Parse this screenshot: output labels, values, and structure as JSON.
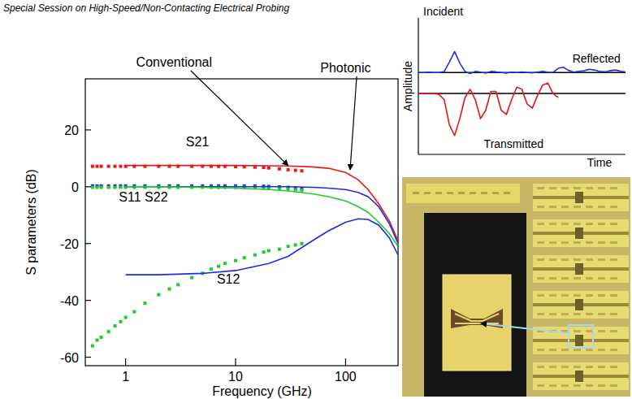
{
  "header": {
    "text": "Special Session on High-Speed/Non-Contacting Electrical Probing"
  },
  "chart_data": [
    {
      "type": "line",
      "xlabel": "Frequency (GHz)",
      "ylabel": "S parameters (dB)",
      "log": "x",
      "xlim": [
        0.43,
        300
      ],
      "xticks": [
        1,
        10,
        100
      ],
      "ylim": [
        -63,
        38
      ],
      "yticks": [
        -60,
        -40,
        -20,
        0,
        20
      ],
      "grid": false,
      "annotations": [
        {
          "text": "S21",
          "x": 4.5,
          "y": 16
        },
        {
          "text": "S11 S22",
          "x": 1.45,
          "y": -3.6
        },
        {
          "text": "S12",
          "x": 8.6,
          "y": -32.5
        },
        {
          "text": "Conventional",
          "x": 2.76,
          "y": 44,
          "arrow": {
            "x": 30,
            "y": 7.5
          }
        },
        {
          "text": "Photonic",
          "x": 100,
          "y": 42,
          "arrow": {
            "x": 110,
            "y": 6
          }
        }
      ],
      "series": [
        {
          "type": "scatter",
          "marker": "square",
          "color": "#e81818",
          "x": [
            0.5,
            0.55,
            0.6,
            0.7,
            0.8,
            0.9,
            1,
            1.2,
            1.5,
            2,
            2.5,
            3,
            4,
            5,
            6,
            7,
            8,
            10,
            12,
            15,
            18,
            20,
            25,
            30,
            35,
            40
          ],
          "values": [
            7.2,
            7.2,
            7.2,
            7.2,
            7.2,
            7.2,
            7.2,
            7.2,
            7.2,
            7.2,
            7.2,
            7.2,
            7.2,
            7.2,
            7.2,
            7.2,
            7.2,
            7.1,
            7.0,
            6.9,
            6.8,
            6.6,
            6.3,
            6.0,
            5.8,
            5.6
          ]
        },
        {
          "type": "line",
          "line_style": "solid",
          "color": "#e81818",
          "x": [
            1,
            2,
            5,
            10,
            20,
            30,
            50,
            70,
            100,
            130,
            160,
            200,
            250,
            300
          ],
          "values": [
            7.5,
            7.5,
            7.5,
            7.5,
            7.4,
            7.3,
            7.0,
            6.5,
            5.0,
            2.5,
            -1,
            -6,
            -12,
            -19
          ]
        },
        {
          "type": "scatter",
          "marker": "square",
          "color": "#1c2ce0",
          "x": [
            0.5,
            0.55,
            0.6,
            0.7,
            0.8,
            0.9,
            1,
            1.2,
            1.5,
            2,
            2.5,
            3,
            4,
            5,
            6,
            7,
            8,
            10,
            12,
            15,
            18,
            20,
            25,
            30,
            35,
            40
          ],
          "values": [
            0.3,
            0.3,
            0.3,
            0.3,
            0.3,
            0.3,
            0.3,
            0.3,
            0.3,
            0.3,
            0.3,
            0.3,
            0.3,
            0.3,
            0.3,
            0.3,
            0.3,
            0.3,
            0.3,
            0.3,
            0.2,
            0.1,
            0,
            -0.2,
            -0.4,
            -0.6
          ]
        },
        {
          "type": "scatter",
          "marker": "square",
          "color": "#1fcc2a",
          "x": [
            0.5,
            0.55,
            0.6,
            0.7,
            0.8,
            0.9,
            1,
            1.2,
            1.5,
            2,
            2.5,
            3,
            4,
            5,
            6,
            7,
            8,
            10,
            12,
            15,
            18,
            20,
            25,
            30,
            35,
            40
          ],
          "values": [
            -0.2,
            -0.2,
            -0.2,
            -0.2,
            -0.2,
            -0.2,
            -0.2,
            -0.2,
            -0.2,
            -0.2,
            -0.2,
            -0.2,
            -0.2,
            -0.2,
            -0.2,
            -0.2,
            -0.2,
            -0.2,
            -0.2,
            -0.2,
            -0.3,
            -0.4,
            -0.6,
            -0.8,
            -1.0,
            -1.2
          ]
        },
        {
          "type": "line",
          "line_style": "solid",
          "color": "#1c2ce0",
          "x": [
            1,
            2,
            5,
            10,
            20,
            30,
            50,
            70,
            100,
            130,
            160,
            200,
            250,
            300
          ],
          "values": [
            0,
            0,
            0,
            0,
            0,
            0,
            -0.2,
            -0.5,
            -1,
            -2,
            -3.5,
            -7,
            -13,
            -20
          ]
        },
        {
          "type": "line",
          "line_style": "solid",
          "color": "#1fcc2a",
          "x": [
            1,
            2,
            5,
            10,
            20,
            30,
            50,
            70,
            100,
            130,
            160,
            200,
            250,
            300
          ],
          "values": [
            0,
            0,
            -0.2,
            -0.5,
            -1,
            -1.5,
            -2.5,
            -3.5,
            -5,
            -7,
            -9,
            -12.5,
            -16.5,
            -21
          ]
        },
        {
          "type": "scatter",
          "marker": "square",
          "color": "#1fcc2a",
          "x": [
            0.5,
            0.55,
            0.6,
            0.7,
            0.8,
            0.9,
            1,
            1.2,
            1.5,
            2,
            2.5,
            3,
            4,
            5,
            6,
            7,
            8,
            10,
            12,
            15,
            18,
            20,
            25,
            30,
            35,
            40
          ],
          "values": [
            -56,
            -54,
            -53,
            -51,
            -49,
            -47.5,
            -46,
            -44,
            -41,
            -38,
            -36,
            -34.5,
            -32,
            -30.5,
            -29,
            -28,
            -27,
            -26,
            -25,
            -24,
            -23,
            -22.5,
            -22,
            -21,
            -20.5,
            -20
          ]
        },
        {
          "type": "line",
          "line_style": "solid",
          "color": "#1c2ce0",
          "x": [
            1,
            2,
            5,
            10,
            20,
            30,
            50,
            70,
            100,
            130,
            160,
            200,
            250,
            300
          ],
          "values": [
            -31,
            -31,
            -30.5,
            -29.5,
            -27,
            -24.5,
            -19,
            -15.5,
            -12.5,
            -11.3,
            -11.5,
            -13.5,
            -18,
            -24
          ]
        }
      ]
    },
    {
      "type": "line",
      "xlabel": "Time",
      "ylabel": "Amplitude",
      "tick_labels": false,
      "xlim": [
        0,
        100
      ],
      "ylim": [
        -3.9,
        2.6
      ],
      "baselines": [
        0,
        -1
      ],
      "x": [
        0,
        2.5,
        5,
        7.5,
        10,
        12.5,
        15,
        17.5,
        20,
        22.5,
        25,
        27.5,
        30,
        32.5,
        35,
        37.5,
        40,
        42.5,
        45,
        47.5,
        50,
        52.5,
        55,
        57.5,
        60,
        62.5,
        65,
        67.5,
        70,
        72.5,
        75,
        77.5,
        80,
        82.5,
        85,
        87.5,
        90,
        92.5,
        95,
        97.5,
        100
      ],
      "annotations": [
        {
          "text": "Incident",
          "x": 12,
          "y": 2.9
        },
        {
          "text": "Reflected",
          "x": 86,
          "y": 0.65
        },
        {
          "text": "Transmitted",
          "x": 46,
          "y": -3.4
        }
      ],
      "series": [
        {
          "color": "#2032d8",
          "line_style": "solid",
          "values": [
            0,
            0,
            0.02,
            0,
            0,
            0.05,
            0.5,
            1.0,
            0.45,
            0.05,
            -0.05,
            0.05,
            0.02,
            -0.03,
            0.05,
            0.03,
            0,
            -0.03,
            0.02,
            0,
            0.03,
            0,
            -0.02,
            0.02,
            0.05,
            0.02,
            0,
            0.2,
            0.25,
            0.1,
            0.02,
            0.05,
            0.08,
            0.15,
            0.12,
            0.05,
            0.03,
            0.08,
            0.12,
            0.06,
            0.02
          ]
        },
        {
          "color": "#e01818",
          "line_style": "solid",
          "values": [
            -1,
            -1,
            -1,
            -1,
            -1.05,
            -1.3,
            -2.5,
            -3.0,
            -2.2,
            -1.2,
            -0.8,
            -1.3,
            -2.2,
            -1.8,
            -0.9,
            -0.9,
            -1.8,
            -2.0,
            -1.3,
            -0.7,
            -0.8,
            -1.5,
            -1.7,
            -1.1,
            -0.6,
            -0.5,
            -1.0,
            -1.2,
            null,
            null,
            null,
            null,
            null,
            null,
            null,
            null,
            null,
            null,
            null,
            null,
            null
          ]
        }
      ]
    }
  ]
}
